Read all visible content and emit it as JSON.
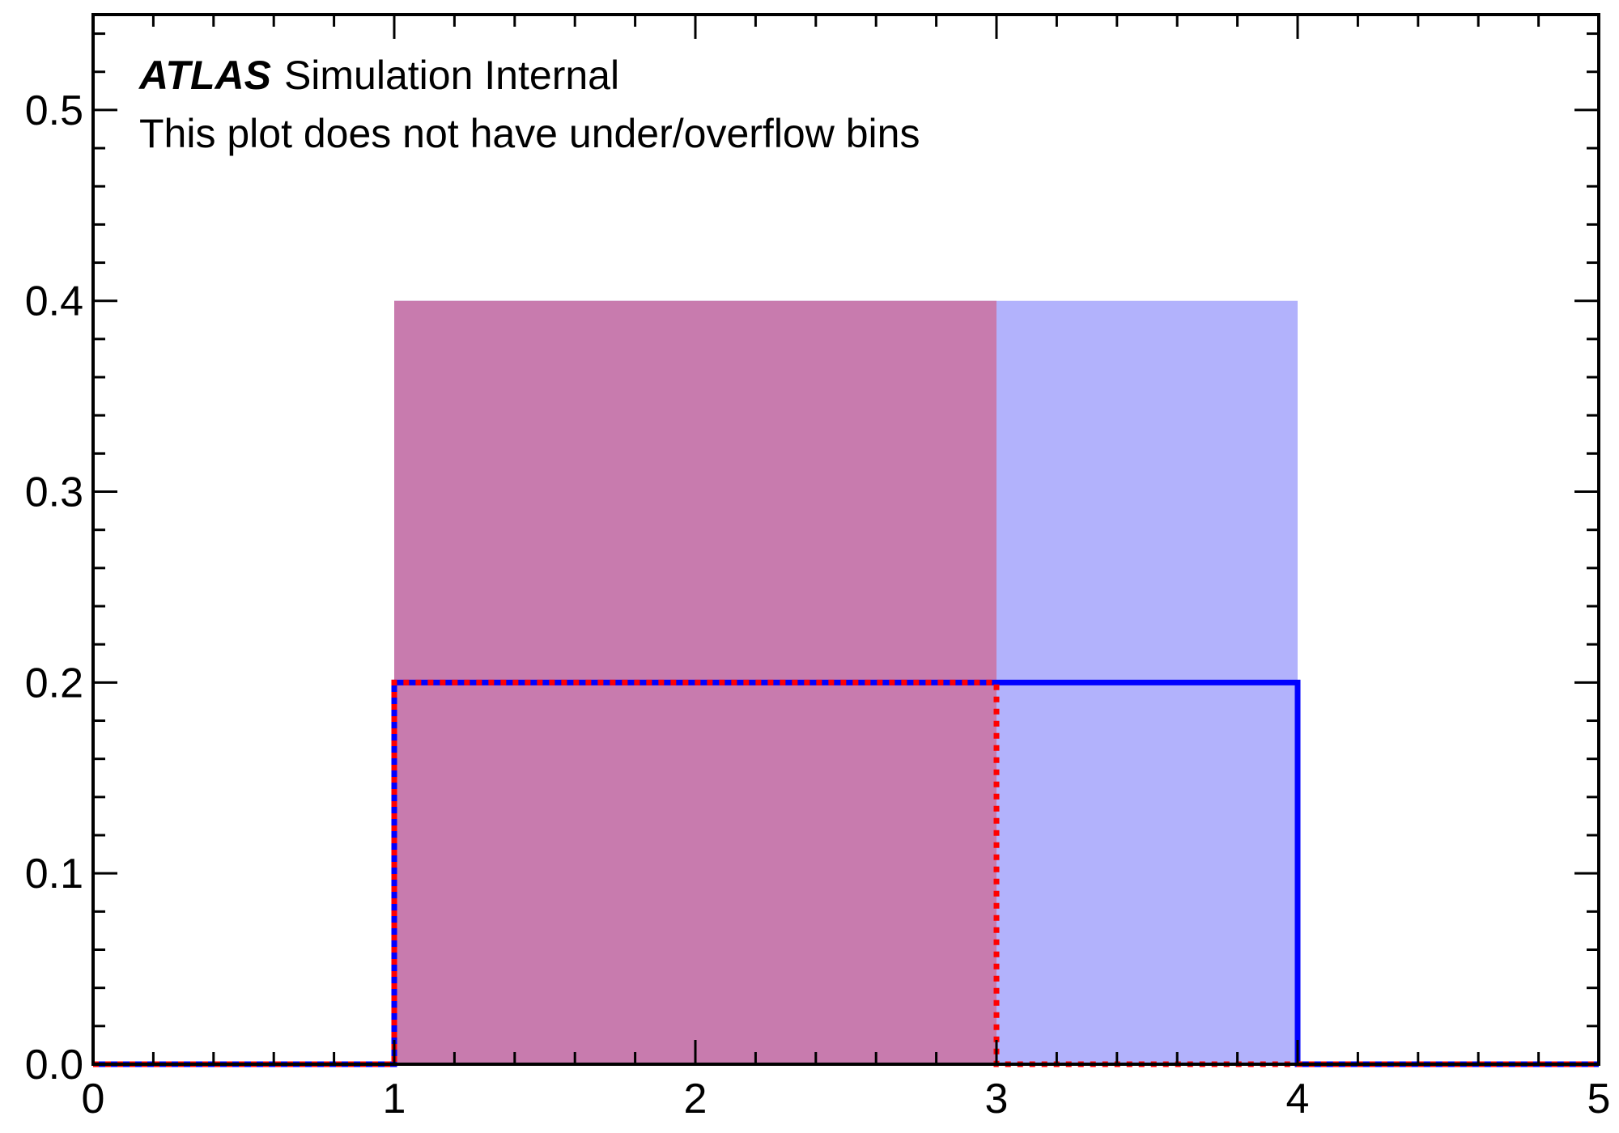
{
  "chart_data": {
    "type": "histogram",
    "title": "",
    "xlabel": "",
    "ylabel": "",
    "xlim": [
      0,
      5
    ],
    "ylim": [
      0,
      0.55
    ],
    "bin_edges": [
      0,
      1,
      2,
      3,
      4,
      5
    ],
    "x_ticks": [
      0,
      1,
      2,
      3,
      4,
      5
    ],
    "x_tick_labels": [
      "0",
      "1",
      "2",
      "3",
      "4",
      "5"
    ],
    "y_ticks": [
      0.0,
      0.1,
      0.2,
      0.3,
      0.4,
      0.5
    ],
    "y_tick_labels": [
      "0.0",
      "0.1",
      "0.2",
      "0.3",
      "0.4",
      "0.5"
    ],
    "annotation": {
      "experiment": "ATLAS",
      "status": "Simulation Internal",
      "note": "This plot does not have under/overflow bins"
    },
    "filled": [
      {
        "name": "fill-blue",
        "color": "#b2b2fc",
        "bars": [
          {
            "x0": 1,
            "x1": 4,
            "y": 0.4
          }
        ]
      },
      {
        "name": "fill-red",
        "color": "#c87bae",
        "bars": [
          {
            "x0": 1,
            "x1": 3,
            "y": 0.4
          }
        ]
      }
    ],
    "outlines": [
      {
        "name": "outline-blue-solid",
        "color": "#0000ff",
        "style": "solid",
        "values": [
          0,
          0.2,
          0.2,
          0.2,
          0
        ]
      },
      {
        "name": "outline-red-dotted",
        "color": "#ff0000",
        "style": "dotted",
        "values": [
          0,
          0.2,
          0.2,
          0,
          0
        ]
      }
    ]
  }
}
